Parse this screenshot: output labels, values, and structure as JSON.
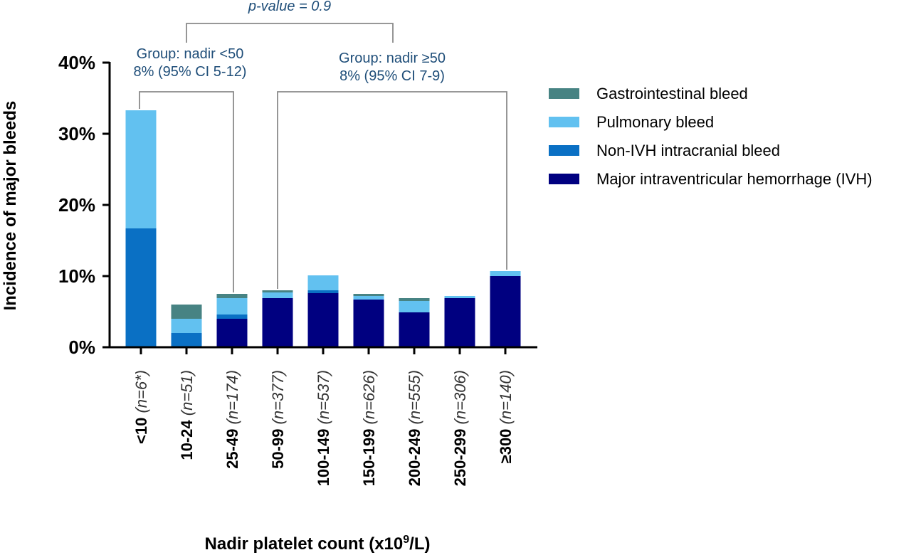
{
  "chart_data": {
    "type": "bar",
    "stacked": true,
    "categories": [
      {
        "range": "<10",
        "n": "(n=6*)"
      },
      {
        "range": "10-24",
        "n": "(n=51)"
      },
      {
        "range": "25-49",
        "n": "(n=174)"
      },
      {
        "range": "50-99",
        "n": "(n=377)"
      },
      {
        "range": "100-149",
        "n": "(n=537)"
      },
      {
        "range": "150-199",
        "n": "(n=626)"
      },
      {
        "range": "200-249",
        "n": "(n=555)"
      },
      {
        "range": "250-299",
        "n": "(n=306)"
      },
      {
        "range": "≥300",
        "n": "(n=140)"
      }
    ],
    "series": [
      {
        "name": "Major intraventricular hemorrhage (IVH)",
        "color": "#000080",
        "values": [
          0,
          0,
          4.0,
          6.9,
          7.6,
          6.7,
          4.9,
          6.9,
          10.0
        ]
      },
      {
        "name": "Non-IVH intracranial bleed",
        "color": "#0A70C4",
        "values": [
          16.7,
          2.0,
          0.6,
          0,
          0.4,
          0,
          0,
          0,
          0
        ]
      },
      {
        "name": "Pulmonary bleed",
        "color": "#62C1F0",
        "values": [
          16.6,
          2.0,
          2.3,
          0.8,
          2.1,
          0.5,
          1.6,
          0.3,
          0.7
        ]
      },
      {
        "name": "Gastrointestinal bleed",
        "color": "#478383",
        "values": [
          0,
          2.0,
          0.6,
          0.3,
          0,
          0.3,
          0.4,
          0,
          0
        ]
      }
    ],
    "legend_order": [
      3,
      2,
      1,
      0
    ],
    "legend_position": "right",
    "ylabel": "Incidence of major bleeds",
    "xlabel": {
      "main": "Nadir platelet count (x10",
      "sup": "9",
      "end": "/L)"
    },
    "ylim": [
      0,
      40
    ],
    "yticks": [
      0,
      10,
      20,
      30,
      40
    ],
    "ytick_labels": [
      "0%",
      "10%",
      "20%",
      "30%",
      "40%"
    ],
    "grid": false,
    "annotations": {
      "pvalue": "p-value = 0.9",
      "group_low": {
        "line1": "Group: nadir <50",
        "line2": "8% (95% CI 5-12)"
      },
      "group_high": {
        "line1": "Group: nadir ≥50",
        "line2": "8% (95% CI 7-9)"
      }
    },
    "annotation_color": "#1F4E79"
  }
}
